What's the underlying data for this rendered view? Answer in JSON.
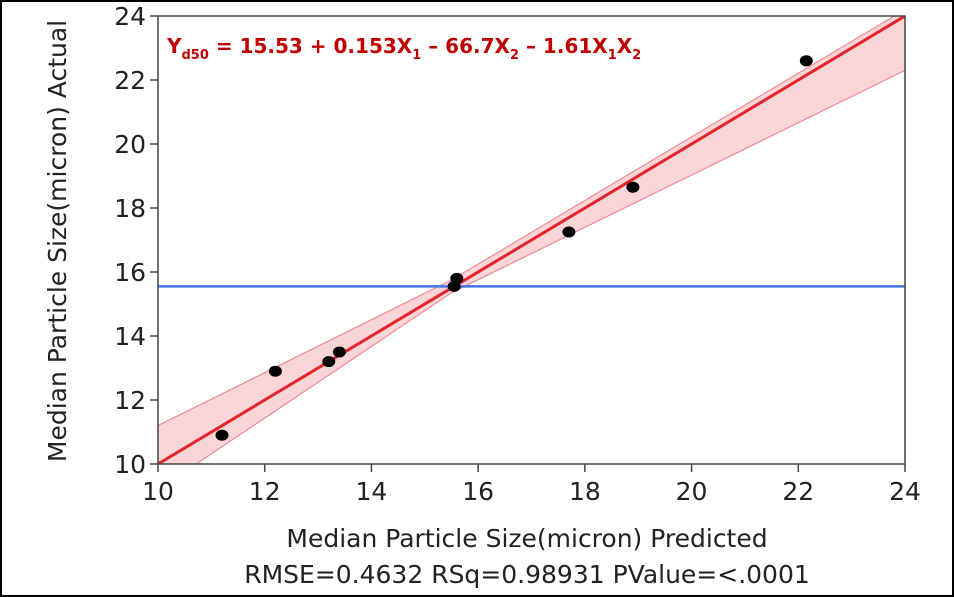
{
  "chart_data": {
    "type": "scatter",
    "xlabel": "Median Particle Size(micron) Predicted",
    "ylabel": "Median Particle Size(micron) Actual",
    "xlim": [
      10,
      24
    ],
    "ylim": [
      10,
      24
    ],
    "x_ticks": [
      "10",
      "12",
      "14",
      "16",
      "18",
      "20",
      "22",
      "24"
    ],
    "y_ticks": [
      "10",
      "12",
      "14",
      "16",
      "18",
      "20",
      "22",
      "24"
    ],
    "grid": false,
    "points": [
      {
        "x": 11.2,
        "y": 10.9
      },
      {
        "x": 12.2,
        "y": 12.9
      },
      {
        "x": 13.2,
        "y": 13.2
      },
      {
        "x": 13.4,
        "y": 13.5
      },
      {
        "x": 15.55,
        "y": 15.55
      },
      {
        "x": 15.6,
        "y": 15.8
      },
      {
        "x": 17.7,
        "y": 17.25
      },
      {
        "x": 18.9,
        "y": 18.65
      },
      {
        "x": 22.15,
        "y": 22.6
      }
    ],
    "fit_line": {
      "x": [
        10,
        24
      ],
      "y": [
        10,
        24
      ],
      "color": "#e3242b"
    },
    "confidence_band": {
      "x": [
        10,
        15.5,
        24
      ],
      "lower": [
        9.2,
        15.35,
        22.3
      ],
      "upper": [
        11.2,
        15.75,
        24.2
      ],
      "color": "#f7b9bd"
    },
    "mean_line": {
      "y": 15.55,
      "color": "#4472e8"
    },
    "equation": {
      "parts": [
        {
          "text": "Y",
          "sub": "d50"
        },
        {
          "text": " = 15.53 + 0.153X",
          "sub": "1"
        },
        {
          "text": " – 66.7X",
          "sub": "2"
        },
        {
          "text": " – 1.61X",
          "sub": "1"
        },
        {
          "text": "X",
          "sub": "2"
        }
      ],
      "color": "#c00000"
    },
    "stats": "RMSE=0.4632 RSq=0.98931 PValue=<.0001",
    "point_color": "#000000"
  }
}
